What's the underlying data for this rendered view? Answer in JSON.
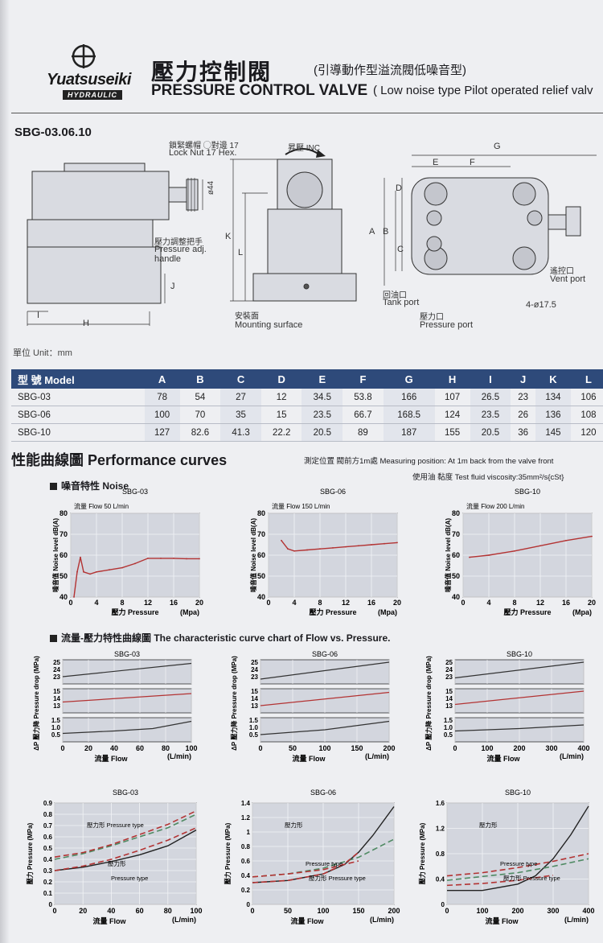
{
  "header": {
    "brand": "Yuatsuseiki",
    "brand_sub": "HYDRAULIC",
    "title_zh": "壓力控制閥",
    "title_zh_sub": "(引導動作型溢流閥低噪音型)",
    "title_en": "PRESSURE CONTROL VALVE",
    "title_en_sub": "( Low noise type Pilot operated relief valv"
  },
  "model_heading": "SBG-03.06.10",
  "drawing_labels": {
    "lock_nut_zh": "鎖緊螺帽 ◯對邊 17",
    "lock_nut_en": "Lock Nut 17 Hex.",
    "dia44": "ø44",
    "handle_zh": "壓力調整把手",
    "handle_en1": "Pressure adj.",
    "handle_en2": "handle",
    "inc": "昇壓 INC",
    "mount_zh": "安裝面",
    "mount_en": "Mounting surface",
    "vent_zh": "遙控口",
    "vent_en": "Vent port",
    "tank_zh": "回油口",
    "tank_en": "Tank port",
    "pressure_zh": "壓力口",
    "pressure_en": "Pressure port",
    "holes": "4-ø17.5",
    "dims": [
      "A",
      "B",
      "C",
      "D",
      "E",
      "F",
      "G",
      "H",
      "I",
      "J",
      "K",
      "L"
    ]
  },
  "unit": "單位 Unit：mm",
  "table": {
    "header": [
      "型 號 Model",
      "A",
      "B",
      "C",
      "D",
      "E",
      "F",
      "G",
      "H",
      "I",
      "J",
      "K",
      "L"
    ],
    "rows": [
      [
        "SBG-03",
        "78",
        "54",
        "27",
        "12",
        "34.5",
        "53.8",
        "166",
        "107",
        "26.5",
        "23",
        "134",
        "106"
      ],
      [
        "SBG-06",
        "100",
        "70",
        "35",
        "15",
        "23.5",
        "66.7",
        "168.5",
        "124",
        "23.5",
        "26",
        "136",
        "108"
      ],
      [
        "SBG-10",
        "127",
        "82.6",
        "41.3",
        "22.2",
        "20.5",
        "89",
        "187",
        "155",
        "20.5",
        "36",
        "145",
        "120"
      ]
    ]
  },
  "performance": {
    "title": "性能曲線圖  Performance curves",
    "note1": "測定位置  閥前方1m處  Measuring position: At 1m back from the valve front",
    "note2": "使用油  黏度 Test fluid viscosity:35mm²/s{cSt}",
    "noise_title": "噪音特性 Noise",
    "flow_title": "流量-壓力特性曲線圖 The characteristic curve chart of Flow vs. Pressure."
  },
  "chart_data": [
    {
      "type": "line",
      "title": "SBG-03",
      "subtitle": "流量 Flow 50 L/min",
      "xlabel": "壓力 Pressure",
      "xunit": "(Mpa)",
      "ylabel": "噪音值 Noise level dB(A)",
      "xlim": [
        0,
        20
      ],
      "ylim": [
        40,
        80
      ],
      "xticks": [
        0,
        4,
        8,
        12,
        16,
        20
      ],
      "yticks": [
        40,
        50,
        60,
        70,
        80
      ],
      "x": [
        0.5,
        1,
        1.5,
        2,
        3,
        4,
        6,
        8,
        10,
        12,
        14,
        16,
        18,
        20
      ],
      "values": [
        40,
        52,
        59,
        52,
        51,
        52,
        53,
        54,
        56,
        58.5,
        58.5,
        58.5,
        58.3,
        58.3
      ]
    },
    {
      "type": "line",
      "title": "SBG-06",
      "subtitle": "流量 Flow 150 L/min",
      "xlabel": "壓力 Pressure",
      "xunit": "(Mpa)",
      "ylabel": "噪音值 Noise level dB(A)",
      "xlim": [
        0,
        20
      ],
      "ylim": [
        40,
        80
      ],
      "xticks": [
        0,
        4,
        8,
        12,
        16,
        20
      ],
      "yticks": [
        40,
        50,
        60,
        70,
        80
      ],
      "x": [
        2,
        3,
        4,
        6,
        8,
        10,
        12,
        14,
        16,
        18,
        20
      ],
      "values": [
        67,
        63,
        62,
        62.5,
        63,
        63.5,
        64,
        64.5,
        65,
        65.5,
        66
      ]
    },
    {
      "type": "line",
      "title": "SBG-10",
      "subtitle": "流量 Flow 200 L/min",
      "xlabel": "壓力 Pressure",
      "xunit": "(Mpa)",
      "ylabel": "噪音值 Noise level dB(A)",
      "xlim": [
        0,
        20
      ],
      "ylim": [
        40,
        80
      ],
      "xticks": [
        0,
        4,
        8,
        12,
        16,
        20
      ],
      "yticks": [
        40,
        50,
        60,
        70,
        80
      ],
      "x": [
        1,
        4,
        8,
        12,
        16,
        20
      ],
      "values": [
        59,
        60,
        62,
        64.5,
        67,
        69
      ]
    },
    {
      "type": "line",
      "title": "SBG-03",
      "xlabel": "流量 Flow",
      "xunit": "(L/min)",
      "ylabel": "ΔP 壓力降 Pressure drop (MPa)",
      "xlim": [
        0,
        100
      ],
      "xticks": [
        0,
        20,
        40,
        60,
        80,
        100
      ],
      "bands": [
        {
          "yticks": [
            "25",
            "24",
            "23"
          ],
          "x": [
            0,
            100
          ],
          "values": [
            0.3,
            0.85
          ],
          "color": "#333333"
        },
        {
          "yticks": [
            "15",
            "14",
            "13"
          ],
          "x": [
            0,
            100
          ],
          "values": [
            0.45,
            0.8
          ],
          "color": "#b33333"
        },
        {
          "yticks": [
            "1.5",
            "1.0",
            "0.5"
          ],
          "x": [
            0,
            40,
            70,
            100
          ],
          "values": [
            0.35,
            0.45,
            0.55,
            0.85
          ],
          "color": "#333333"
        }
      ]
    },
    {
      "type": "line",
      "title": "SBG-06",
      "xlabel": "流量 Flow",
      "xunit": "(L/min)",
      "ylabel": "ΔP 壓力降 Pressure drop (MPa)",
      "xlim": [
        0,
        200
      ],
      "xticks": [
        0,
        50,
        100,
        150,
        200
      ],
      "bands": [
        {
          "yticks": [
            "25",
            "24",
            "23"
          ],
          "x": [
            0,
            200
          ],
          "values": [
            0.2,
            0.9
          ],
          "color": "#333333"
        },
        {
          "yticks": [
            "15",
            "14",
            "13"
          ],
          "x": [
            0,
            200
          ],
          "values": [
            0.3,
            0.85
          ],
          "color": "#b33333"
        },
        {
          "yticks": [
            "1.5",
            "1.0",
            "0.5"
          ],
          "x": [
            0,
            100,
            200
          ],
          "values": [
            0.3,
            0.5,
            0.85
          ],
          "color": "#333333"
        }
      ]
    },
    {
      "type": "line",
      "title": "SBG-10",
      "xlabel": "流量 Flow",
      "xunit": "(L/min)",
      "ylabel": "ΔP 壓力降 Pressure drop (MPa)",
      "xlim": [
        0,
        400
      ],
      "xticks": [
        0,
        100,
        200,
        300,
        400
      ],
      "bands": [
        {
          "yticks": [
            "25",
            "24",
            "23"
          ],
          "x": [
            0,
            400
          ],
          "values": [
            0.25,
            0.9
          ],
          "color": "#333333"
        },
        {
          "yticks": [
            "15",
            "14",
            "13"
          ],
          "x": [
            0,
            400
          ],
          "values": [
            0.35,
            0.9
          ],
          "color": "#b33333"
        },
        {
          "yticks": [
            "1.5",
            "1.0",
            "0.5"
          ],
          "x": [
            0,
            200,
            400
          ],
          "values": [
            0.45,
            0.55,
            0.7
          ],
          "color": "#333333"
        }
      ]
    },
    {
      "type": "line",
      "title": "SBG-03",
      "xlabel": "流量 Flow",
      "xunit": "(L/min)",
      "ylabel": "壓力 Pressure (MPa)",
      "xlim": [
        0,
        100
      ],
      "ylim": [
        0,
        0.9
      ],
      "xticks": [
        0,
        20,
        40,
        60,
        80,
        100
      ],
      "yticks": [
        0,
        0.1,
        0.2,
        0.3,
        0.4,
        0.5,
        0.6,
        0.7,
        0.8,
        0.9
      ],
      "annotations": [
        "壓力形 Pressure type",
        "壓力形",
        "Pressure type"
      ],
      "series": [
        {
          "x": [
            0,
            20,
            40,
            60,
            80,
            100
          ],
          "values": [
            0.3,
            0.33,
            0.38,
            0.44,
            0.52,
            0.66
          ],
          "color": "#222222",
          "dash": false
        },
        {
          "x": [
            0,
            20,
            40,
            60,
            80,
            100
          ],
          "values": [
            0.4,
            0.45,
            0.52,
            0.6,
            0.68,
            0.8
          ],
          "color": "#4f8a63",
          "dash": true
        },
        {
          "x": [
            0,
            20,
            40,
            60,
            80,
            100
          ],
          "values": [
            0.42,
            0.46,
            0.53,
            0.62,
            0.71,
            0.83
          ],
          "color": "#b33333",
          "dash": true
        },
        {
          "x": [
            0,
            20,
            40,
            60,
            80,
            100
          ],
          "values": [
            0.3,
            0.34,
            0.4,
            0.48,
            0.57,
            0.68
          ],
          "color": "#b33333",
          "dash": true
        }
      ]
    },
    {
      "type": "line",
      "title": "SBG-06",
      "xlabel": "流量 Flow",
      "xunit": "(L/min)",
      "ylabel": "壓力 Pressure (MPa)",
      "xlim": [
        0,
        200
      ],
      "ylim": [
        0,
        1.4
      ],
      "xticks": [
        0,
        50,
        100,
        150,
        200
      ],
      "yticks": [
        0,
        0.2,
        0.4,
        0.6,
        0.8,
        1.0,
        1.2,
        1.4
      ],
      "annotations": [
        "壓力形",
        "Pressure type",
        "壓力形 Pressure type"
      ],
      "series": [
        {
          "x": [
            0,
            50,
            100,
            130,
            150,
            170,
            200
          ],
          "values": [
            0.3,
            0.33,
            0.42,
            0.55,
            0.72,
            0.95,
            1.35
          ],
          "color": "#222222",
          "dash": false
        },
        {
          "x": [
            0,
            50,
            100,
            150,
            200
          ],
          "values": [
            0.38,
            0.42,
            0.5,
            0.65,
            0.9
          ],
          "color": "#4f8a63",
          "dash": true
        },
        {
          "x": [
            0,
            50,
            100,
            130,
            150
          ],
          "values": [
            0.3,
            0.33,
            0.42,
            0.56,
            0.72
          ],
          "color": "#b33333",
          "dash": true
        },
        {
          "x": [
            0,
            50,
            100,
            150
          ],
          "values": [
            0.38,
            0.42,
            0.48,
            0.6
          ],
          "color": "#b33333",
          "dash": true
        }
      ]
    },
    {
      "type": "line",
      "title": "SBG-10",
      "xlabel": "流量 Flow",
      "xunit": "(L/min)",
      "ylabel": "壓力 Pressure (MPa)",
      "xlim": [
        0,
        400
      ],
      "ylim": [
        0,
        1.6
      ],
      "xticks": [
        0,
        100,
        200,
        300,
        400
      ],
      "yticks": [
        0,
        0.4,
        0.8,
        1.2,
        1.6
      ],
      "annotations": [
        "壓力形",
        "Pressure type",
        "壓力形 Pressure type"
      ],
      "series": [
        {
          "x": [
            0,
            100,
            200,
            250,
            300,
            350,
            400
          ],
          "values": [
            0.22,
            0.22,
            0.32,
            0.45,
            0.72,
            1.1,
            1.55
          ],
          "color": "#222222",
          "dash": false
        },
        {
          "x": [
            0,
            100,
            200,
            300,
            400
          ],
          "values": [
            0.38,
            0.44,
            0.5,
            0.6,
            0.72
          ],
          "color": "#4f8a63",
          "dash": true
        },
        {
          "x": [
            0,
            100,
            200,
            300
          ],
          "values": [
            0.3,
            0.33,
            0.38,
            0.46
          ],
          "color": "#b33333",
          "dash": true
        },
        {
          "x": [
            0,
            100,
            200,
            300,
            400
          ],
          "values": [
            0.45,
            0.5,
            0.58,
            0.68,
            0.8
          ],
          "color": "#b33333",
          "dash": true
        }
      ]
    }
  ]
}
